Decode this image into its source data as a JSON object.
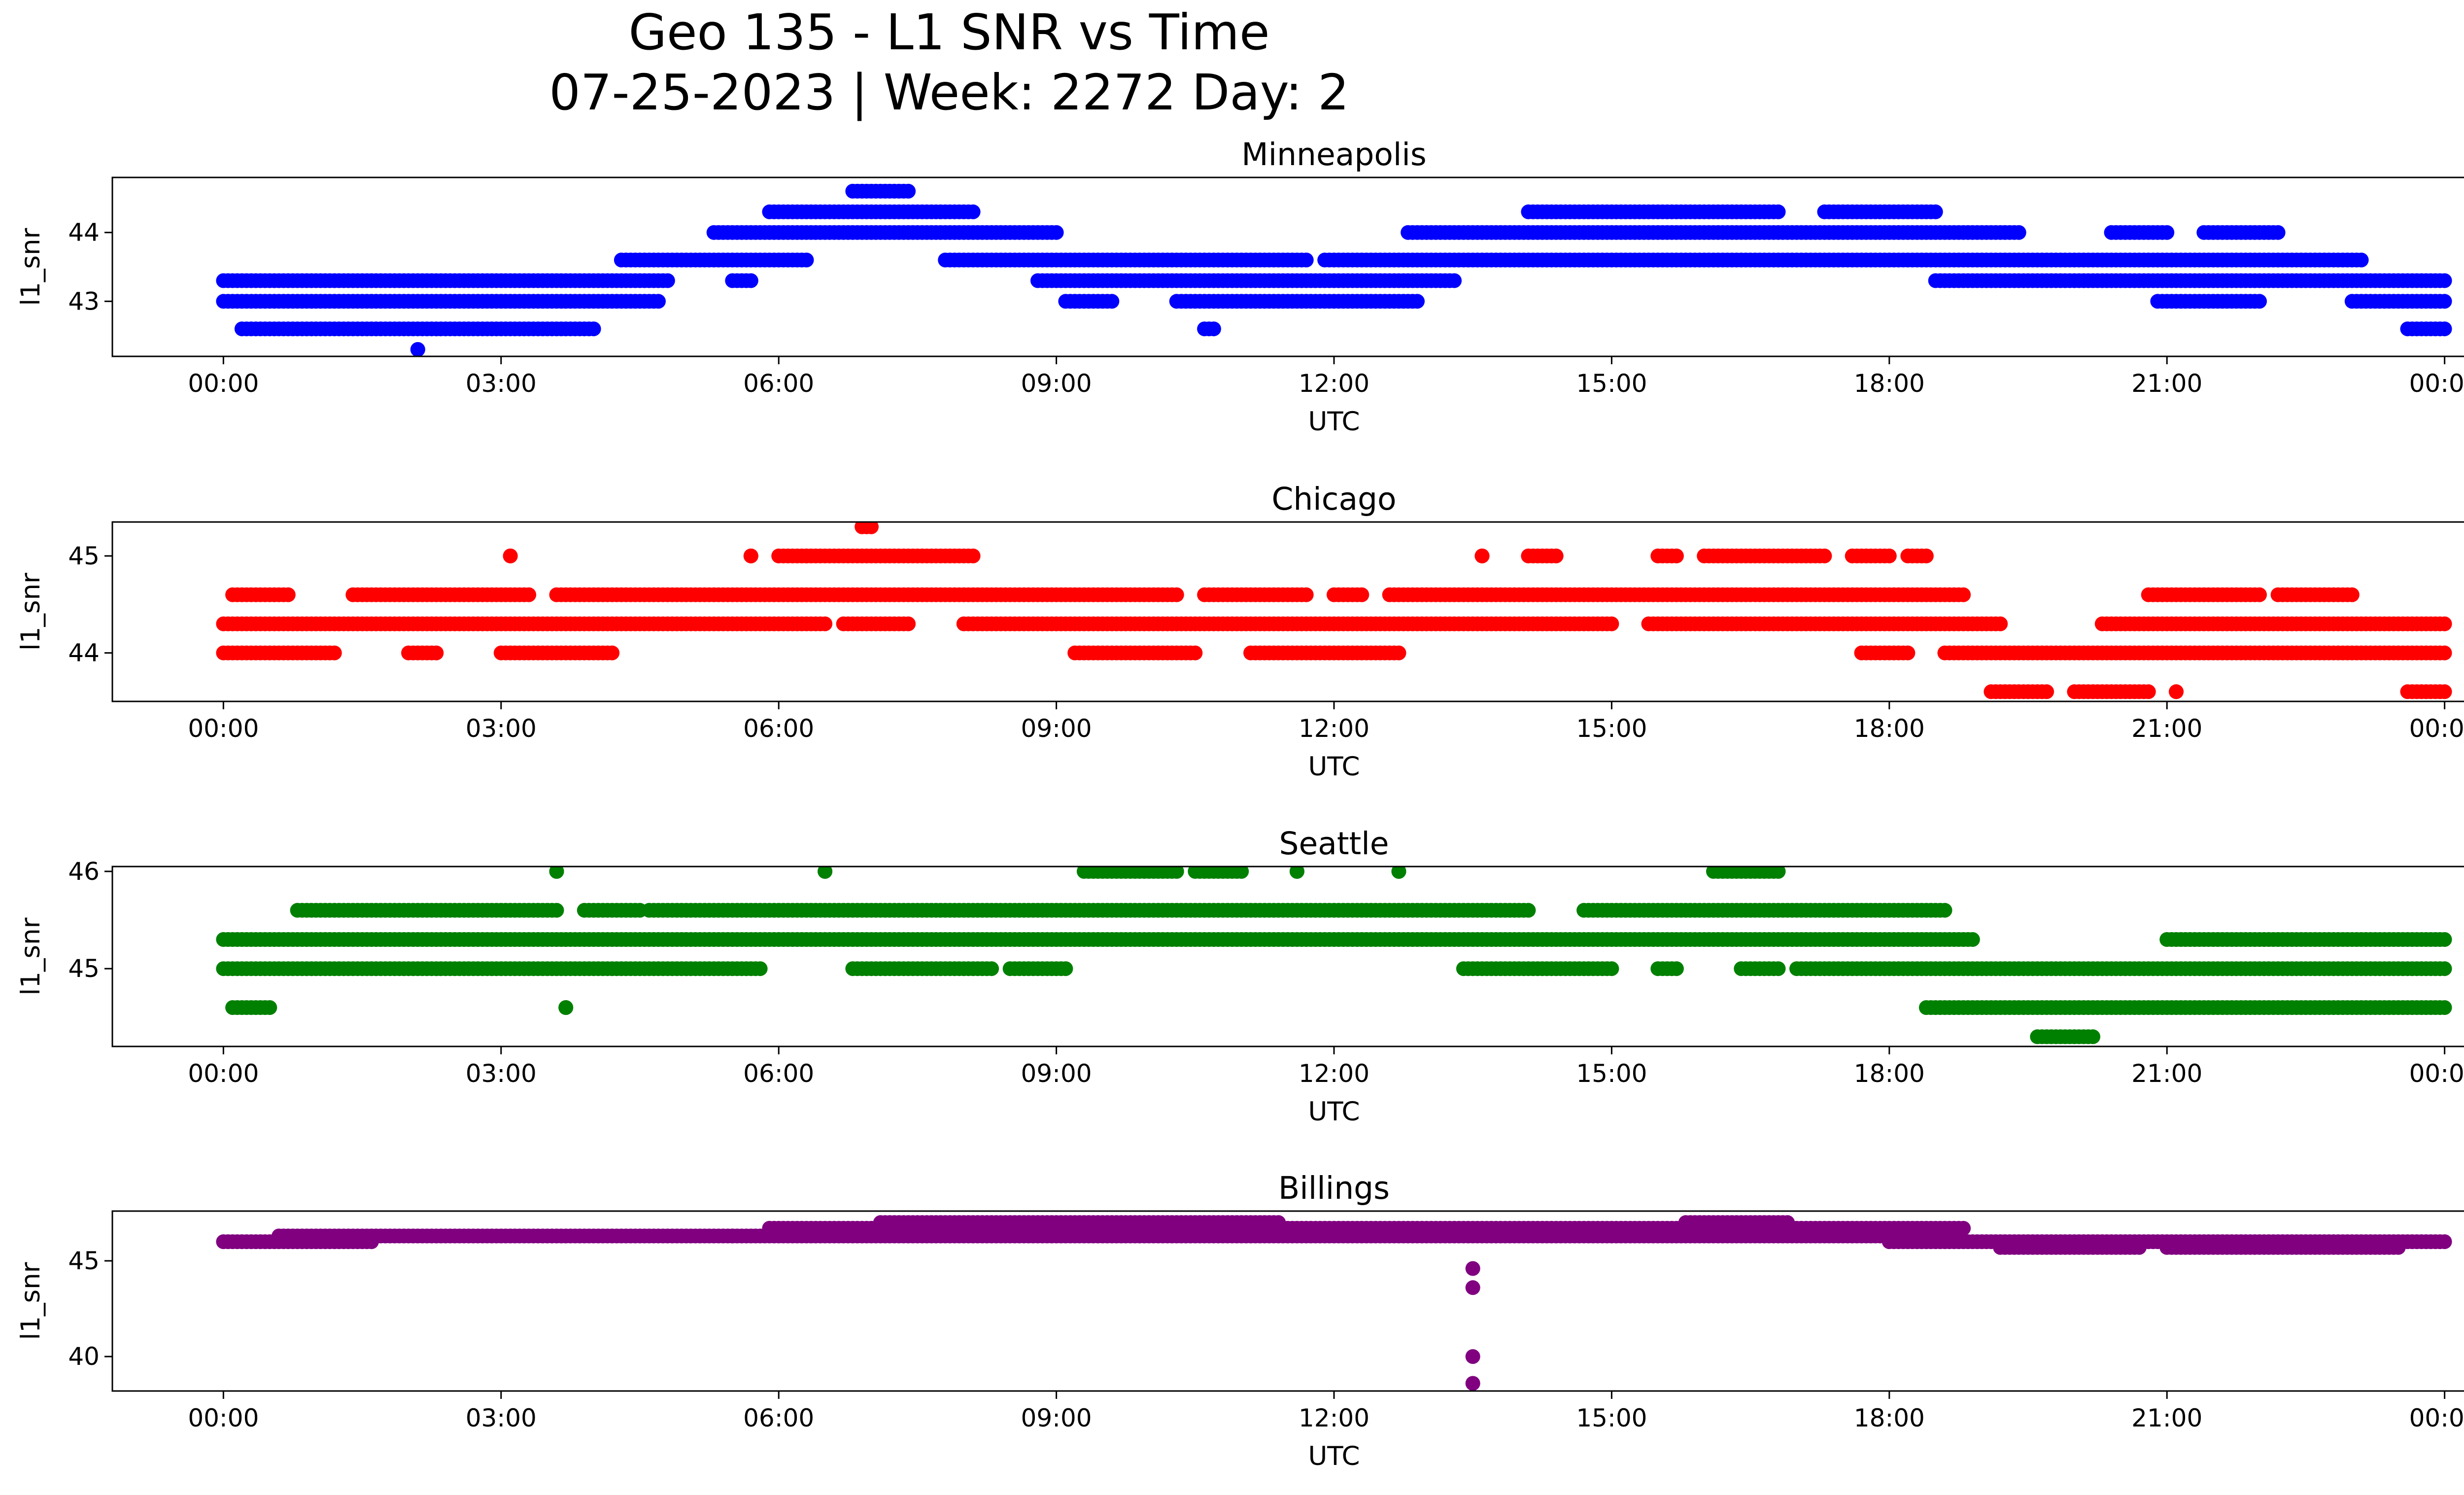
{
  "figure": {
    "title_line1": "Geo 135 - L1 SNR vs Time",
    "title_line2": "07-25-2023 | Week: 2272 Day: 2"
  },
  "chart_data": [
    {
      "type": "scatter",
      "title": "Minneapolis",
      "xlabel": "UTC",
      "ylabel": "l1_snr",
      "color": "#0000ff",
      "x_ticks": [
        "00:00",
        "03:00",
        "06:00",
        "09:00",
        "12:00",
        "15:00",
        "18:00",
        "21:00",
        "00:00"
      ],
      "y_ticks": [
        43,
        44
      ],
      "xlim_hours": [
        -1.2,
        25.2
      ],
      "ylim": [
        42.2,
        44.8
      ],
      "series": [
        {
          "level": 43.3,
          "segments": [
            [
              0,
              4.8
            ],
            [
              5.5,
              5.7
            ],
            [
              8.8,
              13.3
            ],
            [
              18.5,
              24.0
            ]
          ]
        },
        {
          "level": 43.0,
          "segments": [
            [
              0,
              4.7
            ],
            [
              9.1,
              9.6
            ],
            [
              10.3,
              12.9
            ],
            [
              20.9,
              22.0
            ],
            [
              23.0,
              24.0
            ]
          ]
        },
        {
          "level": 42.6,
          "segments": [
            [
              0.2,
              4.0
            ],
            [
              10.6,
              10.7
            ],
            [
              23.6,
              24.0
            ]
          ]
        },
        {
          "level": 42.3,
          "segments": [
            [
              2.1,
              2.1
            ]
          ]
        },
        {
          "level": 43.6,
          "segments": [
            [
              4.3,
              6.3
            ],
            [
              7.8,
              11.7
            ],
            [
              11.9,
              23.1
            ]
          ]
        },
        {
          "level": 44.0,
          "segments": [
            [
              5.3,
              9.0
            ],
            [
              12.8,
              19.4
            ],
            [
              20.4,
              21.0
            ],
            [
              21.4,
              22.2
            ]
          ]
        },
        {
          "level": 44.3,
          "segments": [
            [
              5.9,
              8.1
            ],
            [
              14.1,
              16.8
            ],
            [
              17.3,
              18.5
            ]
          ]
        },
        {
          "level": 44.6,
          "segments": [
            [
              6.8,
              7.4
            ]
          ]
        }
      ]
    },
    {
      "type": "scatter",
      "title": "Chicago",
      "xlabel": "UTC",
      "ylabel": "l1_snr",
      "color": "#ff0000",
      "x_ticks": [
        "00:00",
        "03:00",
        "06:00",
        "09:00",
        "12:00",
        "15:00",
        "18:00",
        "21:00",
        "00:00"
      ],
      "y_ticks": [
        44,
        45
      ],
      "xlim_hours": [
        -1.2,
        25.2
      ],
      "ylim": [
        43.5,
        45.35
      ],
      "series": [
        {
          "level": 44.3,
          "segments": [
            [
              0,
              6.5
            ],
            [
              6.7,
              7.4
            ],
            [
              8.0,
              15.0
            ],
            [
              15.4,
              19.2
            ],
            [
              20.3,
              24.0
            ]
          ]
        },
        {
          "level": 44.6,
          "segments": [
            [
              0.1,
              0.7
            ],
            [
              1.4,
              3.3
            ],
            [
              3.6,
              10.3
            ],
            [
              10.6,
              11.7
            ],
            [
              12.0,
              12.3
            ],
            [
              12.6,
              18.8
            ],
            [
              20.8,
              22.0
            ],
            [
              22.2,
              23.0
            ]
          ]
        },
        {
          "level": 44.0,
          "segments": [
            [
              0,
              1.2
            ],
            [
              2.0,
              2.3
            ],
            [
              3.0,
              4.2
            ],
            [
              9.2,
              10.5
            ],
            [
              11.1,
              12.7
            ],
            [
              17.7,
              18.2
            ],
            [
              18.6,
              24.0
            ]
          ]
        },
        {
          "level": 45.0,
          "segments": [
            [
              3.1,
              3.1
            ],
            [
              5.7,
              5.7
            ],
            [
              6.0,
              6.3
            ],
            [
              6.3,
              8.1
            ],
            [
              13.6,
              13.6
            ],
            [
              14.1,
              14.4
            ],
            [
              15.5,
              15.7
            ],
            [
              16.0,
              17.3
            ],
            [
              17.6,
              18.0
            ],
            [
              18.2,
              18.4
            ]
          ]
        },
        {
          "level": 45.3,
          "segments": [
            [
              6.9,
              7.0
            ]
          ]
        },
        {
          "level": 43.6,
          "segments": [
            [
              19.1,
              19.7
            ],
            [
              20.0,
              20.8
            ],
            [
              21.1,
              21.1
            ],
            [
              23.6,
              24.0
            ]
          ]
        }
      ]
    },
    {
      "type": "scatter",
      "title": "Seattle",
      "xlabel": "UTC",
      "ylabel": "l1_snr",
      "color": "#008000",
      "x_ticks": [
        "00:00",
        "03:00",
        "06:00",
        "09:00",
        "12:00",
        "15:00",
        "18:00",
        "21:00",
        "00:00"
      ],
      "y_ticks": [
        45,
        46
      ],
      "xlim_hours": [
        -1.2,
        25.2
      ],
      "ylim": [
        44.2,
        46.05
      ],
      "series": [
        {
          "level": 45.3,
          "segments": [
            [
              0,
              18.9
            ]
          ]
        },
        {
          "level": 45.6,
          "segments": [
            [
              0.8,
              3.6
            ],
            [
              3.9,
              4.5
            ],
            [
              4.6,
              14.1
            ],
            [
              14.7,
              18.6
            ]
          ]
        },
        {
          "level": 45.0,
          "segments": [
            [
              0,
              5.8
            ],
            [
              6.8,
              8.3
            ],
            [
              8.5,
              9.1
            ],
            [
              13.4,
              15.0
            ],
            [
              15.5,
              15.7
            ],
            [
              16.4,
              16.8
            ],
            [
              17.0,
              24.0
            ]
          ]
        },
        {
          "level": 44.6,
          "segments": [
            [
              0.1,
              0.5
            ],
            [
              3.7,
              3.7
            ],
            [
              18.4,
              24.0
            ]
          ]
        },
        {
          "level": 46.0,
          "segments": [
            [
              3.6,
              3.6
            ],
            [
              6.5,
              6.5
            ],
            [
              9.3,
              10.3
            ],
            [
              10.5,
              11.0
            ],
            [
              11.6,
              11.6
            ],
            [
              12.7,
              12.7
            ],
            [
              16.1,
              16.8
            ]
          ]
        },
        {
          "level": 44.3,
          "segments": [
            [
              19.6,
              20.2
            ]
          ]
        },
        {
          "level": 45.3,
          "segments": [
            [
              21.0,
              24.0
            ]
          ]
        }
      ]
    },
    {
      "type": "scatter",
      "title": "Billings",
      "xlabel": "UTC",
      "ylabel": "l1_snr",
      "color": "#800080",
      "x_ticks": [
        "00:00",
        "03:00",
        "06:00",
        "09:00",
        "12:00",
        "15:00",
        "18:00",
        "21:00",
        "00:00"
      ],
      "y_ticks": [
        40,
        45
      ],
      "xlim_hours": [
        -1.2,
        25.2
      ],
      "ylim": [
        38.2,
        47.6
      ],
      "series": [
        {
          "level": 46.0,
          "segments": [
            [
              0,
              1.6
            ],
            [
              18.0,
              24.0
            ]
          ]
        },
        {
          "level": 46.3,
          "segments": [
            [
              0.6,
              5.5
            ],
            [
              5.5,
              18.5
            ]
          ]
        },
        {
          "level": 46.7,
          "segments": [
            [
              5.9,
              18.8
            ]
          ]
        },
        {
          "level": 47.0,
          "segments": [
            [
              7.1,
              11.4
            ],
            [
              15.8,
              16.9
            ]
          ]
        },
        {
          "level": 45.7,
          "segments": [
            [
              19.2,
              20.7
            ],
            [
              21.0,
              23.5
            ]
          ]
        }
      ],
      "outliers": [
        {
          "x_hours": 13.5,
          "y": 44.6
        },
        {
          "x_hours": 13.5,
          "y": 43.6
        },
        {
          "x_hours": 13.5,
          "y": 40.0
        },
        {
          "x_hours": 13.5,
          "y": 38.6
        }
      ]
    }
  ]
}
